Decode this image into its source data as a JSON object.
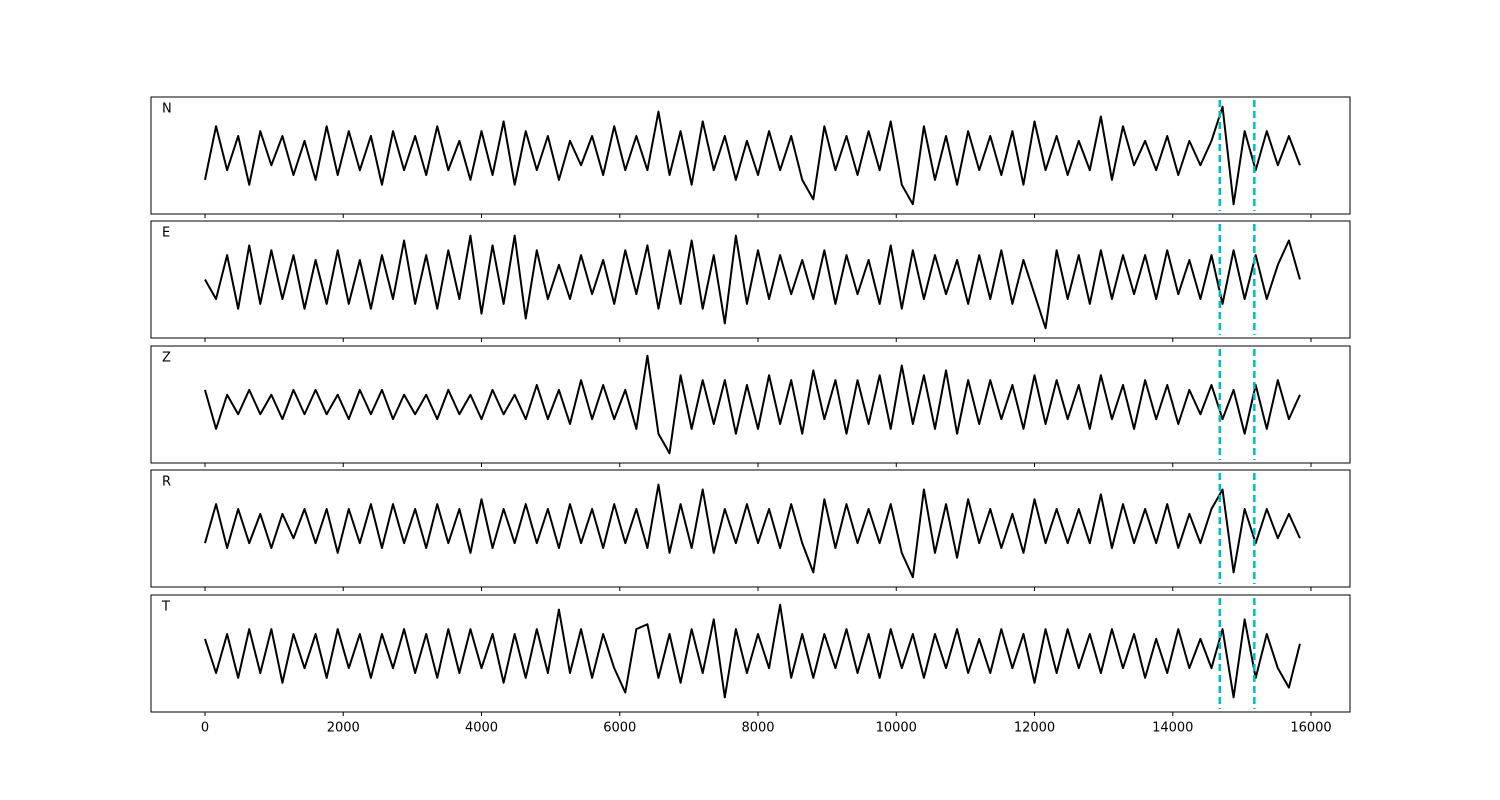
{
  "chart_data": {
    "type": "line",
    "x": [
      0,
      160,
      320,
      480,
      640,
      800,
      960,
      1120,
      1280,
      1440,
      1600,
      1760,
      1920,
      2080,
      2240,
      2400,
      2560,
      2720,
      2880,
      3040,
      3200,
      3360,
      3520,
      3680,
      3840,
      4000,
      4160,
      4320,
      4480,
      4640,
      4800,
      4960,
      5120,
      5280,
      5440,
      5600,
      5760,
      5920,
      6080,
      6240,
      6400,
      6560,
      6720,
      6880,
      7040,
      7200,
      7360,
      7520,
      7680,
      7840,
      8000,
      8160,
      8320,
      8480,
      8640,
      8800,
      8960,
      9120,
      9280,
      9440,
      9600,
      9760,
      9920,
      10080,
      10240,
      10400,
      10560,
      10720,
      10880,
      11040,
      11200,
      11360,
      11520,
      11680,
      11840,
      12000,
      12160,
      12320,
      12480,
      12640,
      12800,
      12960,
      13120,
      13280,
      13440,
      13600,
      13760,
      13920,
      14080,
      14240,
      14400,
      14560,
      14720,
      14880,
      15040,
      15200,
      15360,
      15520,
      15680,
      15840
    ],
    "xlim": [
      -781,
      16564
    ],
    "xticks": [
      0,
      2000,
      4000,
      6000,
      8000,
      10000,
      12000,
      14000,
      16000
    ],
    "ylim": [
      -1.2,
      1.2
    ],
    "vlines": [
      14680,
      15180
    ],
    "vline_color": "#00bfbf",
    "series": [
      {
        "name": "N",
        "color": "#000000",
        "values": [
          -0.5,
          0.6,
          -0.3,
          0.4,
          -0.6,
          0.5,
          -0.2,
          0.4,
          -0.4,
          0.3,
          -0.5,
          0.6,
          -0.4,
          0.5,
          -0.3,
          0.4,
          -0.6,
          0.5,
          -0.3,
          0.4,
          -0.4,
          0.6,
          -0.3,
          0.3,
          -0.5,
          0.5,
          -0.4,
          0.7,
          -0.6,
          0.5,
          -0.3,
          0.4,
          -0.5,
          0.3,
          -0.2,
          0.4,
          -0.4,
          0.6,
          -0.3,
          0.4,
          -0.3,
          0.9,
          -0.4,
          0.5,
          -0.6,
          0.7,
          -0.3,
          0.4,
          -0.5,
          0.3,
          -0.4,
          0.5,
          -0.3,
          0.4,
          -0.5,
          -0.9,
          0.6,
          -0.3,
          0.4,
          -0.4,
          0.5,
          -0.3,
          0.7,
          -0.6,
          -1.0,
          0.6,
          -0.5,
          0.4,
          -0.6,
          0.5,
          -0.3,
          0.4,
          -0.4,
          0.5,
          -0.6,
          0.7,
          -0.3,
          0.4,
          -0.4,
          0.3,
          -0.3,
          0.8,
          -0.5,
          0.6,
          -0.2,
          0.3,
          -0.3,
          0.4,
          -0.4,
          0.3,
          -0.2,
          0.3,
          1.0,
          -1.0,
          0.5,
          -0.3,
          0.5,
          -0.2,
          0.4,
          -0.2
        ]
      },
      {
        "name": "E",
        "color": "#000000",
        "values": [
          0.0,
          -0.4,
          0.5,
          -0.6,
          0.7,
          -0.5,
          0.6,
          -0.4,
          0.5,
          -0.6,
          0.4,
          -0.5,
          0.6,
          -0.5,
          0.4,
          -0.6,
          0.5,
          -0.4,
          0.8,
          -0.5,
          0.5,
          -0.6,
          0.6,
          -0.4,
          0.9,
          -0.7,
          0.7,
          -0.5,
          0.9,
          -0.8,
          0.6,
          -0.4,
          0.3,
          -0.4,
          0.5,
          -0.3,
          0.4,
          -0.5,
          0.6,
          -0.3,
          0.7,
          -0.6,
          0.6,
          -0.5,
          0.8,
          -0.6,
          0.5,
          -0.9,
          0.9,
          -0.5,
          0.6,
          -0.4,
          0.5,
          -0.3,
          0.4,
          -0.4,
          0.6,
          -0.5,
          0.5,
          -0.3,
          0.4,
          -0.5,
          0.7,
          -0.6,
          0.6,
          -0.4,
          0.5,
          -0.3,
          0.4,
          -0.5,
          0.5,
          -0.4,
          0.6,
          -0.5,
          0.4,
          -0.3,
          -1.0,
          0.6,
          -0.4,
          0.5,
          -0.5,
          0.6,
          -0.4,
          0.5,
          -0.3,
          0.5,
          -0.4,
          0.6,
          -0.3,
          0.4,
          -0.4,
          0.5,
          -0.5,
          0.6,
          -0.4,
          0.5,
          -0.4,
          0.3,
          0.8,
          0.0
        ]
      },
      {
        "name": "Z",
        "color": "#000000",
        "values": [
          0.3,
          -0.5,
          0.2,
          -0.2,
          0.3,
          -0.2,
          0.2,
          -0.3,
          0.3,
          -0.2,
          0.3,
          -0.2,
          0.2,
          -0.3,
          0.3,
          -0.2,
          0.3,
          -0.3,
          0.2,
          -0.2,
          0.2,
          -0.3,
          0.3,
          -0.2,
          0.2,
          -0.3,
          0.3,
          -0.2,
          0.2,
          -0.3,
          0.4,
          -0.3,
          0.3,
          -0.4,
          0.5,
          -0.3,
          0.4,
          -0.3,
          0.3,
          -0.5,
          1.0,
          -0.6,
          -1.0,
          0.6,
          -0.5,
          0.5,
          -0.4,
          0.5,
          -0.6,
          0.4,
          -0.5,
          0.6,
          -0.4,
          0.5,
          -0.6,
          0.7,
          -0.3,
          0.5,
          -0.6,
          0.5,
          -0.4,
          0.6,
          -0.5,
          0.8,
          -0.4,
          0.6,
          -0.5,
          0.7,
          -0.6,
          0.5,
          -0.4,
          0.5,
          -0.3,
          0.4,
          -0.5,
          0.6,
          -0.4,
          0.5,
          -0.3,
          0.4,
          -0.5,
          0.6,
          -0.3,
          0.4,
          -0.5,
          0.5,
          -0.3,
          0.4,
          -0.4,
          0.3,
          -0.2,
          0.4,
          -0.3,
          0.3,
          -0.6,
          0.4,
          -0.5,
          0.5,
          -0.3,
          0.2
        ]
      },
      {
        "name": "R",
        "color": "#000000",
        "values": [
          -0.3,
          0.5,
          -0.4,
          0.4,
          -0.3,
          0.3,
          -0.4,
          0.3,
          -0.2,
          0.4,
          -0.3,
          0.4,
          -0.5,
          0.4,
          -0.3,
          0.5,
          -0.4,
          0.5,
          -0.3,
          0.4,
          -0.4,
          0.5,
          -0.3,
          0.4,
          -0.5,
          0.6,
          -0.4,
          0.4,
          -0.3,
          0.5,
          -0.3,
          0.4,
          -0.4,
          0.5,
          -0.3,
          0.4,
          -0.4,
          0.5,
          -0.3,
          0.4,
          -0.4,
          0.9,
          -0.5,
          0.5,
          -0.4,
          0.8,
          -0.5,
          0.4,
          -0.3,
          0.5,
          -0.3,
          0.4,
          -0.4,
          0.5,
          -0.3,
          -0.9,
          0.6,
          -0.4,
          0.5,
          -0.3,
          0.4,
          -0.3,
          0.5,
          -0.5,
          -1.0,
          0.8,
          -0.5,
          0.5,
          -0.6,
          0.6,
          -0.3,
          0.4,
          -0.4,
          0.3,
          -0.5,
          0.6,
          -0.3,
          0.4,
          -0.3,
          0.4,
          -0.3,
          0.7,
          -0.4,
          0.5,
          -0.3,
          0.4,
          -0.3,
          0.5,
          -0.4,
          0.3,
          -0.3,
          0.4,
          0.8,
          -0.9,
          0.4,
          -0.3,
          0.4,
          -0.2,
          0.3,
          -0.2
        ]
      },
      {
        "name": "T",
        "color": "#000000",
        "values": [
          0.3,
          -0.4,
          0.4,
          -0.5,
          0.5,
          -0.4,
          0.5,
          -0.6,
          0.4,
          -0.3,
          0.4,
          -0.5,
          0.5,
          -0.3,
          0.4,
          -0.5,
          0.4,
          -0.3,
          0.5,
          -0.4,
          0.4,
          -0.5,
          0.5,
          -0.4,
          0.5,
          -0.3,
          0.4,
          -0.6,
          0.4,
          -0.5,
          0.5,
          -0.4,
          0.9,
          -0.4,
          0.5,
          -0.5,
          0.4,
          -0.3,
          -0.8,
          0.5,
          0.6,
          -0.5,
          0.4,
          -0.6,
          0.5,
          -0.4,
          0.7,
          -0.9,
          0.5,
          -0.4,
          0.4,
          -0.3,
          1.0,
          -0.5,
          0.4,
          -0.5,
          0.4,
          -0.3,
          0.5,
          -0.4,
          0.4,
          -0.5,
          0.5,
          -0.3,
          0.4,
          -0.5,
          0.4,
          -0.3,
          0.5,
          -0.4,
          0.3,
          -0.4,
          0.5,
          -0.3,
          0.4,
          -0.6,
          0.5,
          -0.4,
          0.5,
          -0.3,
          0.4,
          -0.4,
          0.5,
          -0.3,
          0.4,
          -0.5,
          0.3,
          -0.4,
          0.5,
          -0.3,
          0.3,
          -0.3,
          0.5,
          -0.9,
          0.7,
          -0.5,
          0.4,
          -0.3,
          -0.7,
          0.2
        ]
      }
    ]
  }
}
